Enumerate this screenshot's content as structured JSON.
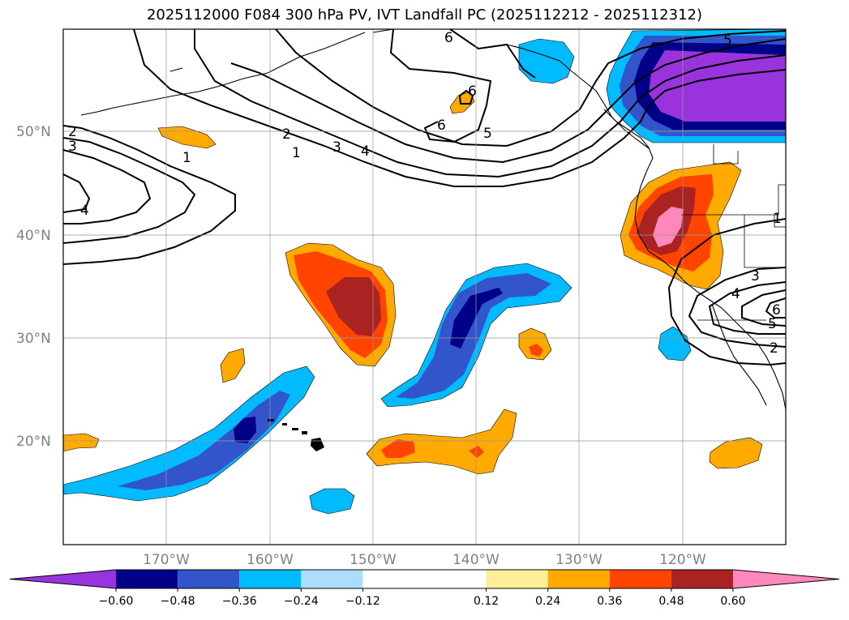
{
  "title": "2025112000 F084 300 hPa PV, IVT Landfall PC (2025112212 - 2025112312)",
  "map": {
    "projection": "Mercator",
    "extent": {
      "lon_min": -180,
      "lon_max": -110,
      "lat_min": 10,
      "lat_max": 60
    },
    "lat_ticks": [
      {
        "value": 20,
        "label": "20°N"
      },
      {
        "value": 30,
        "label": "30°N"
      },
      {
        "value": 40,
        "label": "40°N"
      },
      {
        "value": 50,
        "label": "50°N"
      }
    ],
    "lon_ticks": [
      {
        "value": -170,
        "label": "170°W"
      },
      {
        "value": -160,
        "label": "160°W"
      },
      {
        "value": -150,
        "label": "150°W"
      },
      {
        "value": -140,
        "label": "140°W"
      },
      {
        "value": -130,
        "label": "130°W"
      },
      {
        "value": -120,
        "label": "120°W"
      }
    ],
    "grid": true
  },
  "colorbar": {
    "orientation": "horizontal",
    "extend": "both",
    "boundaries": [
      -0.6,
      -0.48,
      -0.36,
      -0.24,
      -0.12,
      0.12,
      0.24,
      0.36,
      0.48,
      0.6
    ],
    "tick_labels": [
      "−0.60",
      "−0.48",
      "−0.36",
      "−0.24",
      "−0.12",
      "0.12",
      "0.24",
      "0.36",
      "0.48",
      "0.60"
    ],
    "colors": [
      "#9933dd",
      "#000088",
      "#3355cc",
      "#00bbff",
      "#aaddff",
      "#ffffff",
      "#ffee99",
      "#ffaa00",
      "#ff4400",
      "#aa2222",
      "#ff88bb"
    ]
  },
  "contour_labels": [
    {
      "text": "2"
    },
    {
      "text": "3"
    },
    {
      "text": "4"
    },
    {
      "text": "1"
    },
    {
      "text": "1"
    },
    {
      "text": "2"
    },
    {
      "text": "3"
    },
    {
      "text": "4"
    },
    {
      "text": "6"
    },
    {
      "text": "6"
    },
    {
      "text": "6"
    },
    {
      "text": "5"
    },
    {
      "text": "5"
    },
    {
      "text": "1"
    },
    {
      "text": "3"
    },
    {
      "text": "4"
    },
    {
      "text": "6"
    },
    {
      "text": "5"
    },
    {
      "text": "2"
    }
  ]
}
